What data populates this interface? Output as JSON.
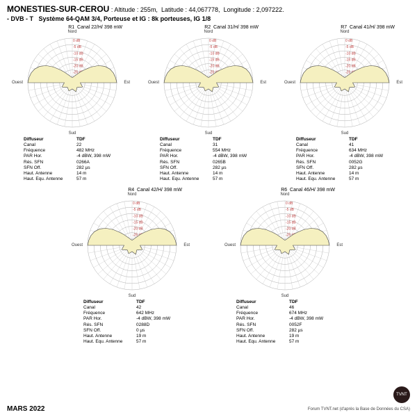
{
  "location": {
    "name": "MONESTIES-SUR-CEROU",
    "alt_label": "Altitude :",
    "altitude": "255m,",
    "lat_label": "Latitude :",
    "latitude": "44,067778,",
    "lon_label": "Longitude :",
    "longitude": "2,097222."
  },
  "system": {
    "prefix": "- DVB - T",
    "label": "Système 64-QAM 3/4,  Porteuse et IG : 8k porteuses, IG 1/8"
  },
  "compass": {
    "n": "Nord",
    "s": "Sud",
    "e": "Est",
    "w": "Ouest"
  },
  "ring_labels": [
    "0 dB",
    "-5 dB",
    "-10 dB",
    "-15 dB",
    "-20 dB",
    "-25 dB",
    "-30 dB"
  ],
  "info_labels": {
    "diff": "Diffuseur",
    "canal": "Canal",
    "freq": "Fréquence",
    "par": "PAR Hor.",
    "res": "Rés. SFN",
    "sfnoff": "SFN Off.",
    "hant": "Haut. Antenne",
    "heq": "Haut. Equ. Antenne"
  },
  "polar_style": {
    "rings": 7,
    "ring_color": "#999999",
    "spoke_color": "#bbbbbb",
    "lobe_fill": "#f5f0c0",
    "lobe_stroke": "#444444",
    "lobe_radii": [
      1.0,
      0.98,
      0.95,
      0.9,
      0.82,
      0.7,
      0.55,
      0.4,
      0.3,
      0.22,
      0.18,
      0.15,
      0.13,
      0.12,
      0.12,
      0.13,
      0.15,
      0.18,
      0.22,
      0.3,
      0.4,
      0.55,
      0.7,
      0.82,
      0.9,
      0.95,
      0.98,
      1.0
    ],
    "lobe_angle_start": -90,
    "lobe_angle_end": 90,
    "label_fontsize": 5,
    "label_color": "#c04040"
  },
  "panels": [
    {
      "id": "R1",
      "title": "Canal  22/H/ 398 mW",
      "diff": "TDF",
      "canal": "22",
      "freq": "482 MHz",
      "par": "-4 dBW, 398 mW",
      "res": "0266A",
      "sfnoff": "282 µs",
      "hant": "14 m",
      "heq": "57 m"
    },
    {
      "id": "R2",
      "title": "Canal  31/H/ 398 mW",
      "diff": "TDF",
      "canal": "31",
      "freq": "554 MHz",
      "par": "-4 dBW, 398 mW",
      "res": "0265B",
      "sfnoff": "282 µs",
      "hant": "14 m",
      "heq": "57 m"
    },
    {
      "id": "R7",
      "title": "Canal  41/H/ 398 mW",
      "diff": "TDF",
      "canal": "41",
      "freq": "634 MHz",
      "par": "-4 dBW, 398 mW",
      "res": "0052G",
      "sfnoff": "282 µs",
      "hant": "14 m",
      "heq": "57 m"
    },
    {
      "id": "R4",
      "title": "Canal  42/H/ 398 mW",
      "diff": "TDF",
      "canal": "42",
      "freq": "642 MHz",
      "par": "-4 dBW, 398 mW",
      "res": "0288D",
      "sfnoff": "0 µs",
      "hant": "19 m",
      "heq": "57 m"
    },
    {
      "id": "R6",
      "title": "Canal  46/H/ 398 mW",
      "diff": "TDF",
      "canal": "46",
      "freq": "674 MHz",
      "par": "-4 dBW, 398 mW",
      "res": "0052F",
      "sfnoff": "282 µs",
      "hant": "19 m",
      "heq": "57 m"
    }
  ],
  "footer": {
    "date": "MARS 2022",
    "logo": "TVNT",
    "source": "Forum TVNT.net (d'après la Base de Données du CSA)"
  }
}
